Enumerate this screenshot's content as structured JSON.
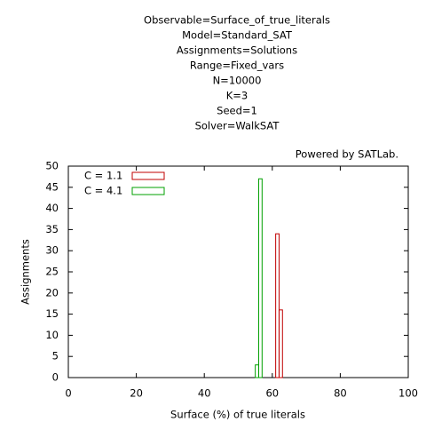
{
  "chart_data": {
    "type": "histogram",
    "title_lines": [
      "Observable=Surface_of_true_literals",
      "Model=Standard_SAT",
      "Assignments=Solutions",
      "Range=Fixed_vars",
      "N=10000",
      "K=3",
      "Seed=1",
      "Solver=WalkSAT"
    ],
    "annotation": "Powered by SATLab.",
    "xlabel": "Surface (%) of true literals",
    "ylabel": "Assignments",
    "xlim": [
      0,
      100
    ],
    "xticks": [
      0,
      20,
      40,
      60,
      80,
      100
    ],
    "ylim": [
      0,
      50
    ],
    "yticks": [
      0,
      5,
      10,
      15,
      20,
      25,
      30,
      35,
      40,
      45,
      50
    ],
    "legend": "top-left",
    "series": [
      {
        "name": "C = 1.1",
        "color": "#c00000",
        "bins": [
          61,
          62,
          63
        ],
        "values": [
          34,
          16
        ]
      },
      {
        "name": "C = 4.1",
        "color": "#00a000",
        "bins": [
          55,
          56,
          57
        ],
        "values": [
          3,
          47
        ]
      }
    ]
  }
}
